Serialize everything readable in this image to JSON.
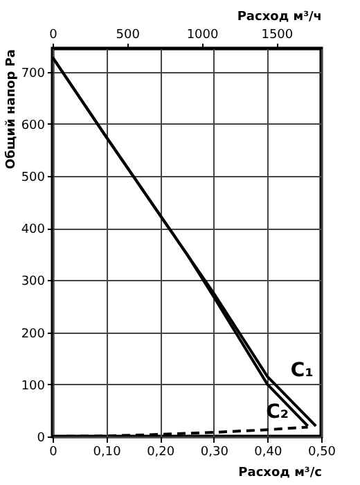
{
  "chart_data": {
    "type": "line",
    "xlabel": "Расход м³/с",
    "x2label": "Расход м³/ч",
    "ylabel": "Общий напор Ра",
    "xlim": [
      0,
      0.5
    ],
    "xticks": [
      {
        "value": 0,
        "label": "0"
      },
      {
        "value": 0.1,
        "label": "0,10"
      },
      {
        "value": 0.2,
        "label": "0,20"
      },
      {
        "value": 0.3,
        "label": "0,30"
      },
      {
        "value": 0.4,
        "label": "0,40"
      },
      {
        "value": 0.5,
        "label": "0,50"
      }
    ],
    "x2lim": [
      0,
      1800
    ],
    "x2ticks": [
      0,
      500,
      1000,
      1500
    ],
    "ylim": [
      0,
      745
    ],
    "yticks": [
      0,
      100,
      200,
      300,
      400,
      500,
      600,
      700
    ],
    "grid": true,
    "marker": "none",
    "series": [
      {
        "name": "C₁",
        "color": "#000000",
        "line_style": "solid",
        "x": [
          0,
          0.1,
          0.2,
          0.3,
          0.4,
          0.49
        ],
        "values": [
          728,
          575,
          425,
          275,
          115,
          20
        ]
      },
      {
        "name": "C₂",
        "color": "#000000",
        "line_style": "solid",
        "x": [
          0,
          0.1,
          0.2,
          0.25,
          0.3,
          0.4,
          0.475
        ],
        "values": [
          728,
          575,
          425,
          350,
          268,
          100,
          20
        ]
      },
      {
        "color": "#000000",
        "line_style": "dashed",
        "x": [
          0,
          0.1,
          0.2,
          0.3,
          0.4,
          0.475
        ],
        "values": [
          0,
          1,
          4,
          8,
          13,
          18
        ]
      }
    ]
  }
}
